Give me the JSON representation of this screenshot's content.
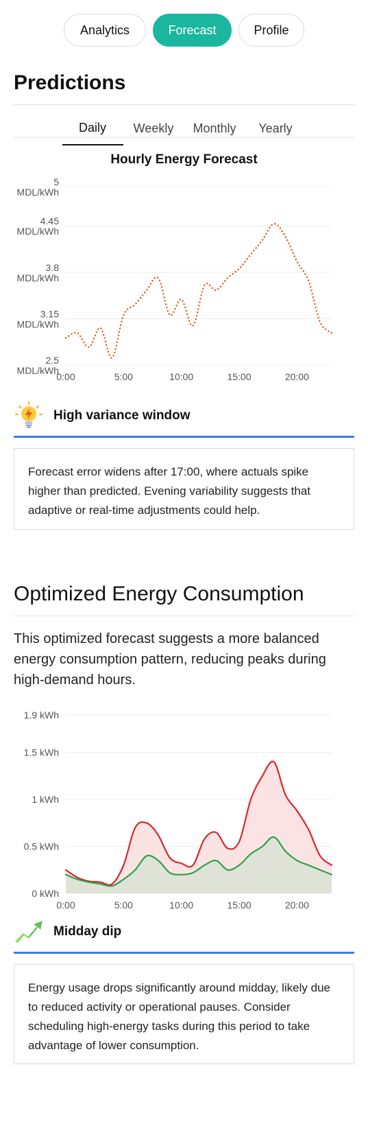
{
  "nav": {
    "items": [
      {
        "label": "Analytics"
      },
      {
        "label": "Forecast"
      },
      {
        "label": "Profile"
      }
    ]
  },
  "predictions": {
    "title": "Predictions",
    "tabs": [
      {
        "label": "Daily"
      },
      {
        "label": "Weekly"
      },
      {
        "label": "Monthly"
      },
      {
        "label": "Yearly"
      }
    ]
  },
  "chart_data": [
    {
      "type": "line",
      "title": "Hourly Energy Forecast",
      "x_ticks": [
        "0:00",
        "5:00",
        "10:00",
        "15:00",
        "20:00"
      ],
      "y_ticks": [
        {
          "value": 2.5,
          "label": "2.5 MDL/kWh"
        },
        {
          "value": 3.15,
          "label": "3.15 MDL/kWh"
        },
        {
          "value": 3.8,
          "label": "3.8 MDL/kWh"
        },
        {
          "value": 4.45,
          "label": "4.45 MDL/kWh"
        },
        {
          "value": 5,
          "label": "5 MDL/kWh"
        }
      ],
      "xlim": [
        0,
        23
      ],
      "ylim": [
        2.5,
        5
      ],
      "grid": true,
      "series": [
        {
          "color": "#e05a17",
          "style": "dotted",
          "x": [
            0,
            1,
            2,
            3,
            4,
            5,
            6,
            7,
            8,
            9,
            10,
            11,
            12,
            13,
            14,
            15,
            16,
            17,
            18,
            19,
            20,
            21,
            22,
            23
          ],
          "values": [
            2.88,
            2.95,
            2.75,
            3.02,
            2.6,
            3.2,
            3.35,
            3.55,
            3.72,
            3.2,
            3.42,
            3.05,
            3.62,
            3.55,
            3.72,
            3.85,
            4.05,
            4.25,
            4.48,
            4.3,
            3.95,
            3.68,
            3.1,
            2.95
          ]
        }
      ]
    },
    {
      "type": "area",
      "title": "",
      "x_ticks": [
        "0:00",
        "5:00",
        "10:00",
        "15:00",
        "20:00"
      ],
      "y_ticks": [
        {
          "value": 0,
          "label": "0 kWh"
        },
        {
          "value": 0.5,
          "label": "0.5 kWh"
        },
        {
          "value": 1,
          "label": "1 kWh"
        },
        {
          "value": 1.5,
          "label": "1.5 kWh"
        },
        {
          "value": 1.9,
          "label": "1.9 kWh"
        }
      ],
      "xlim": [
        0,
        23
      ],
      "ylim": [
        0,
        1.9
      ],
      "grid": true,
      "series": [
        {
          "color": "#d9262b",
          "fill": "#fbe3e3",
          "x": [
            0,
            1,
            2,
            3,
            4,
            5,
            6,
            7,
            8,
            9,
            10,
            11,
            12,
            13,
            14,
            15,
            16,
            17,
            18,
            19,
            20,
            21,
            22,
            23
          ],
          "values": [
            0.25,
            0.17,
            0.13,
            0.12,
            0.1,
            0.3,
            0.7,
            0.75,
            0.62,
            0.38,
            0.32,
            0.3,
            0.58,
            0.65,
            0.48,
            0.55,
            1.0,
            1.25,
            1.4,
            1.05,
            0.88,
            0.68,
            0.4,
            0.3
          ]
        },
        {
          "color": "#2da24b",
          "fill": "#dfe2d6",
          "x": [
            0,
            1,
            2,
            3,
            4,
            5,
            6,
            7,
            8,
            9,
            10,
            11,
            12,
            13,
            14,
            15,
            16,
            17,
            18,
            19,
            20,
            21,
            22,
            23
          ],
          "values": [
            0.2,
            0.15,
            0.12,
            0.1,
            0.08,
            0.15,
            0.25,
            0.4,
            0.35,
            0.22,
            0.2,
            0.22,
            0.3,
            0.35,
            0.25,
            0.3,
            0.42,
            0.5,
            0.6,
            0.45,
            0.35,
            0.3,
            0.25,
            0.2
          ]
        }
      ]
    }
  ],
  "insight1": {
    "icon": "lightbulb-icon",
    "label": "High variance window",
    "text": "Forecast error widens after 17:00, where actuals spike higher than predicted. Evening variability suggests that adaptive or real-time adjustments could help."
  },
  "optimized": {
    "title": "Optimized Energy Consumption",
    "lead": "This optimized forecast suggests a more balanced energy consumption pattern, reducing peaks during high-demand hours."
  },
  "insight2": {
    "icon": "trend-up-icon",
    "label": "Midday dip",
    "text": "Energy usage drops significantly around midday, likely due to reduced activity or operational pauses. Consider scheduling high-energy tasks during this period to take advantage of lower consumption."
  },
  "colors": {
    "accent": "#1ab69e",
    "divider_blue": "#3a7be3"
  }
}
